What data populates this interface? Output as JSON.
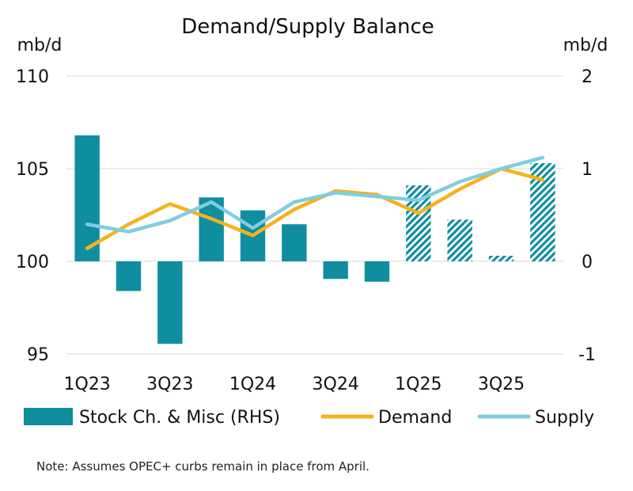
{
  "chart_data": {
    "type": "bar+line",
    "title": "Demand/Supply Balance",
    "left_unit": "mb/d",
    "right_unit": "mb/d",
    "left_axis": {
      "min": 95,
      "max": 110,
      "ticks": [
        95,
        100,
        105,
        110
      ]
    },
    "right_axis": {
      "min": -1,
      "max": 2,
      "ticks": [
        -1,
        0,
        1,
        2
      ]
    },
    "categories": [
      "1Q23",
      "2Q23",
      "3Q23",
      "4Q23",
      "1Q24",
      "2Q24",
      "3Q24",
      "4Q24",
      "1Q25",
      "2Q25",
      "3Q25",
      "4Q25"
    ],
    "x_tick_labels": [
      "1Q23",
      "",
      "3Q23",
      "",
      "1Q24",
      "",
      "3Q24",
      "",
      "1Q25",
      "",
      "3Q25",
      ""
    ],
    "bars": {
      "name": "Stock Ch. & Misc (RHS)",
      "axis": "right",
      "color": "#0f8ea0",
      "values": [
        1.36,
        -0.32,
        -0.89,
        0.69,
        0.55,
        0.4,
        -0.19,
        -0.22,
        0.82,
        0.45,
        0.06,
        1.06
      ],
      "forecast": [
        false,
        false,
        false,
        false,
        false,
        false,
        false,
        false,
        true,
        true,
        true,
        true
      ]
    },
    "series": [
      {
        "name": "Demand",
        "axis": "left",
        "color": "#f5b21e",
        "values": [
          100.7,
          102.0,
          103.1,
          102.3,
          101.4,
          102.8,
          103.8,
          103.6,
          102.6,
          103.9,
          105.0,
          104.4
        ]
      },
      {
        "name": "Supply",
        "axis": "left",
        "color": "#7fcde0",
        "values": [
          102.0,
          101.6,
          102.2,
          103.2,
          101.8,
          103.2,
          103.7,
          103.5,
          103.3,
          104.3,
          105.0,
          105.6
        ]
      }
    ],
    "grid": true,
    "legend_position": "bottom"
  },
  "note": "Note: Assumes OPEC+ curbs remain in place from April."
}
